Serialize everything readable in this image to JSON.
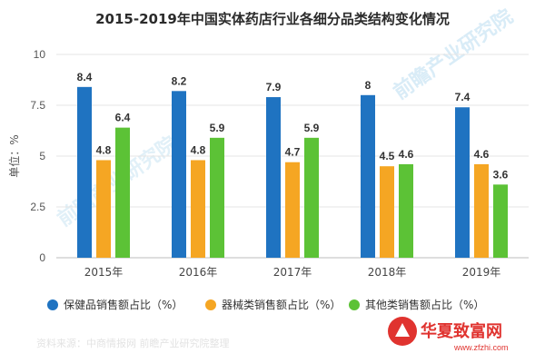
{
  "chart_data": {
    "type": "bar",
    "title": "2015-2019年中国实体药店行业各细分品类结构变化情况",
    "ylabel": "单位：%",
    "xlabel": "",
    "ylim": [
      0,
      10
    ],
    "yticks": [
      "0",
      "2.5",
      "5",
      "7.5",
      "10"
    ],
    "ytick_values": [
      0,
      2.5,
      5,
      7.5,
      10
    ],
    "categories": [
      "2015年",
      "2016年",
      "2017年",
      "2018年",
      "2019年"
    ],
    "grid": "horizontal",
    "legend_position": "bottom",
    "series": [
      {
        "name": "保健品销售额占比（%）",
        "color": "#1f73c1",
        "values": [
          8.4,
          8.2,
          7.9,
          8,
          7.4
        ]
      },
      {
        "name": "器械类销售额占比（%）",
        "color": "#f5a623",
        "values": [
          4.8,
          4.8,
          4.7,
          4.5,
          4.6
        ]
      },
      {
        "name": "其他类销售额占比（%）",
        "color": "#5cc236",
        "values": [
          6.4,
          5.9,
          5.9,
          4.6,
          3.6
        ]
      }
    ]
  },
  "watermark": {
    "brand_text": "前瞻产业研究院",
    "logo_text": "华夏致富网",
    "logo_url_text": "www.zfzhi.com",
    "source_text": "资料来源：中商情报网  前瞻产业研究院整理"
  }
}
